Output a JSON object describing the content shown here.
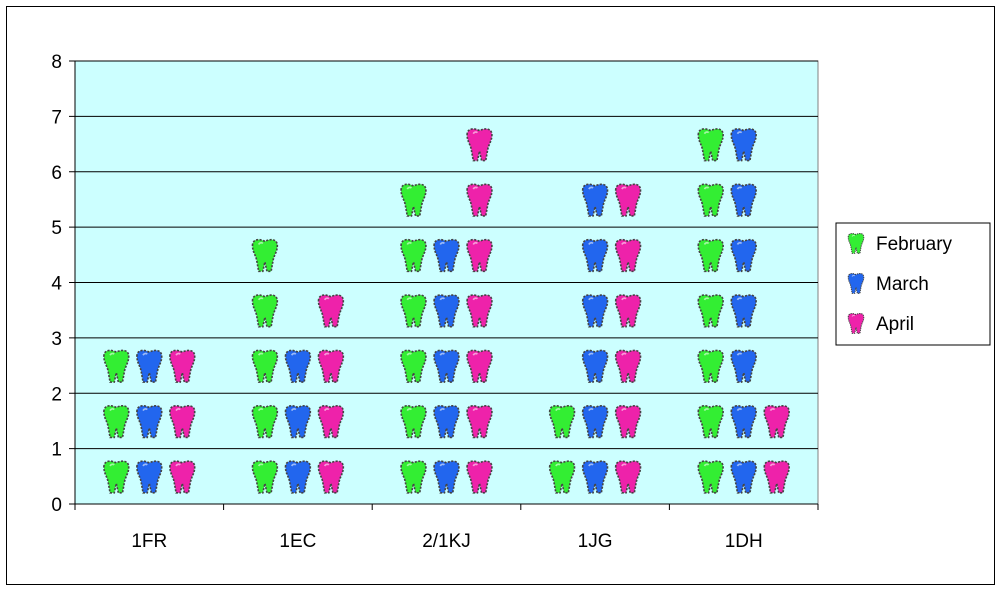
{
  "chart_data": {
    "type": "bar",
    "title": "",
    "xlabel": "",
    "ylabel": "",
    "categories": [
      "1FR",
      "1EC",
      "2/1KJ",
      "1JG",
      "1DH"
    ],
    "series": [
      {
        "name": "February",
        "values": [
          3,
          5,
          6,
          2,
          7
        ],
        "color": "#33ee33"
      },
      {
        "name": "March",
        "values": [
          3,
          3,
          5,
          6,
          7
        ],
        "color": "#2266ee"
      },
      {
        "name": "April",
        "values": [
          3,
          4,
          7,
          6,
          2
        ],
        "color": "#ee22aa"
      }
    ],
    "ylim": [
      0,
      8
    ],
    "yticks": [
      "0",
      "1",
      "2",
      "3",
      "4",
      "5",
      "6",
      "7",
      "8"
    ],
    "grid": true,
    "legend_position": "right",
    "marker": "tooth-icon",
    "plot_background": "#ccffff"
  }
}
